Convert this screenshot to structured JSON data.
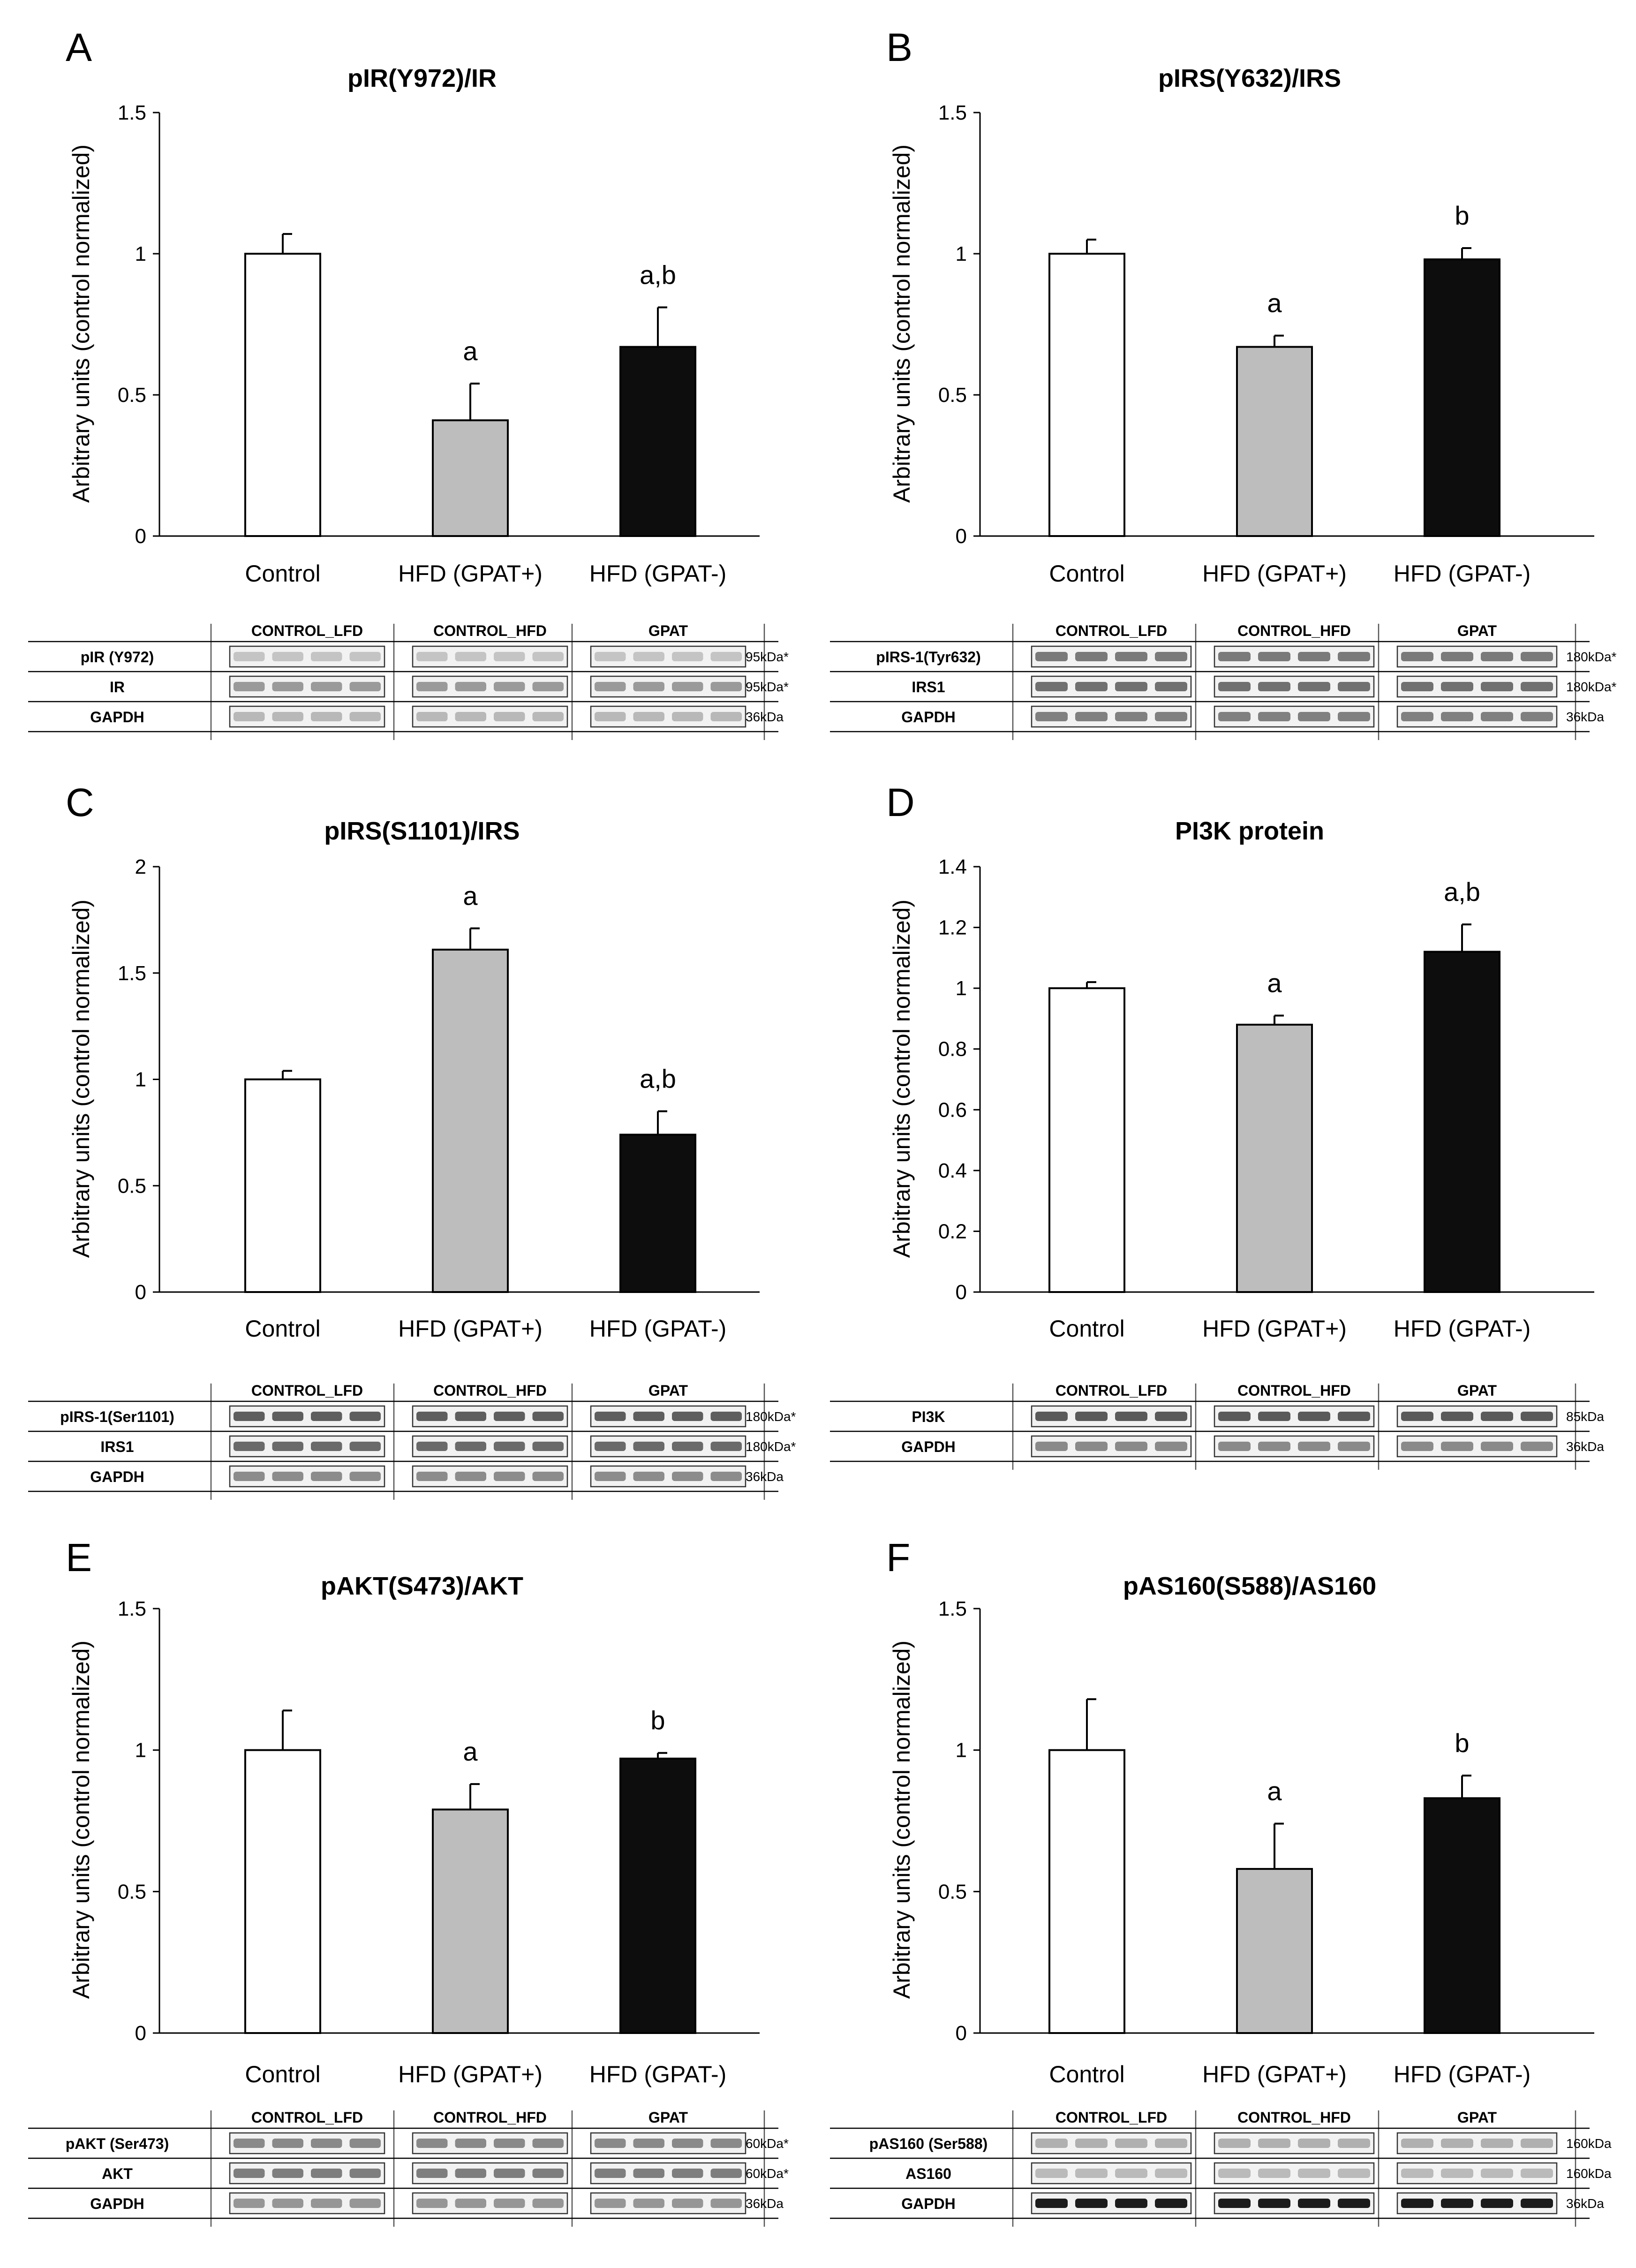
{
  "categories": [
    "Control",
    "HFD (GPAT+)",
    "HFD (GPAT-)"
  ],
  "bar_colors": [
    "#ffffff",
    "#bdbdbd",
    "#0d0d0d"
  ],
  "y_axis_label": "Arbitrary units (control normalized)",
  "blot_groups": [
    "CONTROL_LFD",
    "CONTROL_HFD",
    "GPAT"
  ],
  "chart_data": [
    {
      "panel": "A",
      "type": "bar",
      "title": "pIR(Y972)/IR",
      "yticks": [
        "0",
        "0.5",
        "1",
        "1.5"
      ],
      "ylim": [
        0,
        1.5
      ],
      "values": [
        1.0,
        0.41,
        0.67
      ],
      "errors": [
        0.07,
        0.13,
        0.14
      ],
      "significance": [
        "",
        "a",
        "a,b"
      ],
      "blot": {
        "rows": [
          {
            "label": "pIR (Y972)",
            "kda": "95kDa*",
            "tone": "#c4c4c4"
          },
          {
            "label": "IR",
            "kda": "95kDa*",
            "tone": "#9a9a9a"
          },
          {
            "label": "GAPDH",
            "kda": "36kDa",
            "tone": "#b8b8b8"
          }
        ]
      }
    },
    {
      "panel": "B",
      "type": "bar",
      "title": "pIRS(Y632)/IRS",
      "yticks": [
        "0",
        "0.5",
        "1",
        "1.5"
      ],
      "ylim": [
        0,
        1.5
      ],
      "values": [
        1.0,
        0.67,
        0.98
      ],
      "errors": [
        0.05,
        0.04,
        0.04
      ],
      "significance": [
        "",
        "a",
        "b"
      ],
      "blot": {
        "rows": [
          {
            "label": "pIRS-1(Tyr632)",
            "kda": "180kDa*",
            "tone": "#7a7a7a"
          },
          {
            "label": "IRS1",
            "kda": "180kDa*",
            "tone": "#707070"
          },
          {
            "label": "GAPDH",
            "kda": "36kDa",
            "tone": "#808080"
          }
        ]
      }
    },
    {
      "panel": "C",
      "type": "bar",
      "title": "pIRS(S1101)/IRS",
      "yticks": [
        "0",
        "0.5",
        "1",
        "1.5",
        "2"
      ],
      "ylim": [
        0,
        2
      ],
      "values": [
        1.0,
        1.61,
        0.74
      ],
      "errors": [
        0.04,
        0.1,
        0.11
      ],
      "significance": [
        "",
        "a",
        "a,b"
      ],
      "blot": {
        "rows": [
          {
            "label": "pIRS-1(Ser1101)",
            "kda": "180kDa*",
            "tone": "#5e5e5e"
          },
          {
            "label": "IRS1",
            "kda": "180kDa*",
            "tone": "#6a6a6a"
          },
          {
            "label": "GAPDH",
            "kda": "36kDa",
            "tone": "#8c8c8c"
          }
        ]
      }
    },
    {
      "panel": "D",
      "type": "bar",
      "title": "PI3K protein",
      "yticks": [
        "0",
        "0.2",
        "0.4",
        "0.6",
        "0.8",
        "1",
        "1.2",
        "1.4"
      ],
      "ylim": [
        0,
        1.4
      ],
      "values": [
        1.0,
        0.88,
        1.12
      ],
      "errors": [
        0.02,
        0.03,
        0.09
      ],
      "significance": [
        "",
        "a",
        "a,b"
      ],
      "blot": {
        "rows": [
          {
            "label": "PI3K",
            "kda": "85kDa",
            "tone": "#5a5a5a"
          },
          {
            "label": "GAPDH",
            "kda": "36kDa",
            "tone": "#8a8a8a"
          }
        ]
      }
    },
    {
      "panel": "E",
      "type": "bar",
      "title": "pAKT(S473)/AKT",
      "yticks": [
        "0",
        "0.5",
        "1",
        "1.5"
      ],
      "ylim": [
        0,
        1.5
      ],
      "values": [
        1.0,
        0.79,
        0.97
      ],
      "errors": [
        0.14,
        0.09,
        0.02
      ],
      "significance": [
        "",
        "a",
        "b"
      ],
      "blot": {
        "rows": [
          {
            "label": "pAKT (Ser473)",
            "kda": "60kDa*",
            "tone": "#8a8a8a"
          },
          {
            "label": "AKT",
            "kda": "60kDa*",
            "tone": "#7e7e7e"
          },
          {
            "label": "GAPDH",
            "kda": "36kDa",
            "tone": "#969696"
          }
        ]
      }
    },
    {
      "panel": "F",
      "type": "bar",
      "title": "pAS160(S588)/AS160",
      "yticks": [
        "0",
        "0.5",
        "1",
        "1.5"
      ],
      "ylim": [
        0,
        1.5
      ],
      "values": [
        1.0,
        0.58,
        0.83
      ],
      "errors": [
        0.18,
        0.16,
        0.08
      ],
      "significance": [
        "",
        "a",
        "b"
      ],
      "blot": {
        "rows": [
          {
            "label": "pAS160 (Ser588)",
            "kda": "160kDa",
            "tone": "#b0b0b0"
          },
          {
            "label": "AS160",
            "kda": "160kDa",
            "tone": "#bababa"
          },
          {
            "label": "GAPDH",
            "kda": "36kDa",
            "tone": "#1c1c1c"
          }
        ]
      }
    }
  ]
}
